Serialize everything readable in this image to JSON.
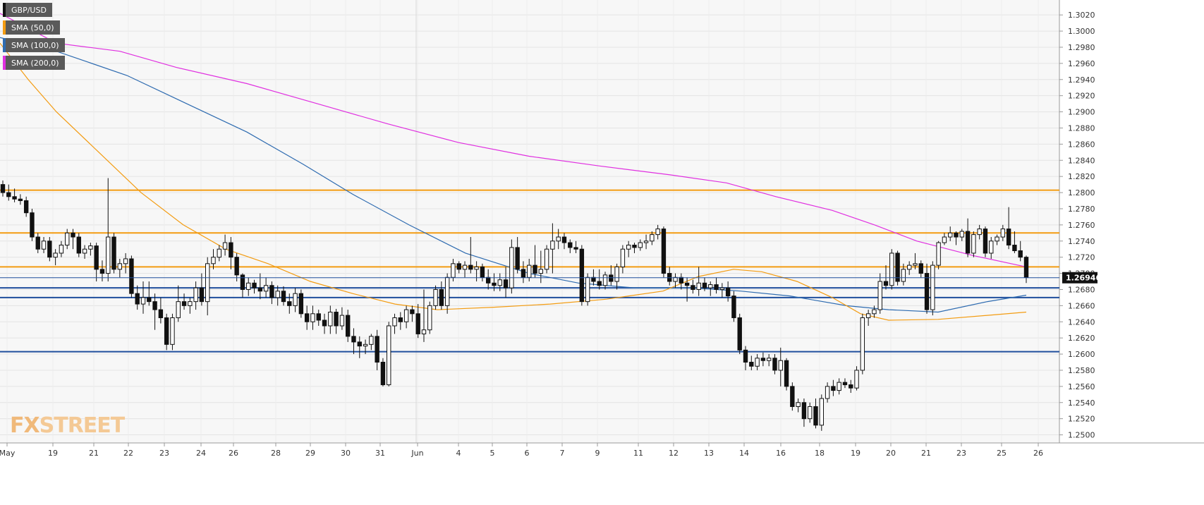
{
  "chart_data": {
    "type": "candlestick",
    "symbol": "GBP/USD",
    "last_price": "1.26946",
    "ylim": [
      1.249,
      1.3035
    ],
    "y_ticks": [
      "1.3020",
      "1.3000",
      "1.2980",
      "1.2960",
      "1.2940",
      "1.2920",
      "1.2900",
      "1.2880",
      "1.2860",
      "1.2840",
      "1.2820",
      "1.2800",
      "1.2780",
      "1.2760",
      "1.2740",
      "1.2720",
      "1.2700",
      "1.2680",
      "1.2660",
      "1.2640",
      "1.2620",
      "1.2600",
      "1.2580",
      "1.2560",
      "1.2540",
      "1.2520",
      "1.2500"
    ],
    "x_labels": [
      "May",
      "19",
      "21",
      "22",
      "23",
      "24",
      "26",
      "28",
      "29",
      "30",
      "31",
      "Jun",
      "4",
      "5",
      "6",
      "7",
      "9",
      "11",
      "12",
      "13",
      "14",
      "16",
      "18",
      "19",
      "20",
      "21",
      "23",
      "25",
      "26"
    ],
    "legend": [
      {
        "name": "GBP/USD",
        "color": "#111111"
      },
      {
        "name": "SMA (50,0)",
        "color": "#f39c12"
      },
      {
        "name": "SMA (100,0)",
        "color": "#2e6bb0"
      },
      {
        "name": "SMA (200,0)",
        "color": "#e030e0"
      }
    ],
    "horizontal_levels": [
      {
        "value": 1.2803,
        "color": "#f39c12"
      },
      {
        "value": 1.275,
        "color": "#f39c12"
      },
      {
        "value": 1.2708,
        "color": "#f39c12"
      },
      {
        "value": 1.2682,
        "color": "#1f4e9c"
      },
      {
        "value": 1.267,
        "color": "#1f4e9c"
      },
      {
        "value": 1.2603,
        "color": "#1f4e9c"
      }
    ],
    "candles": [
      [
        1.281,
        1.2815,
        1.2795,
        1.28
      ],
      [
        1.28,
        1.281,
        1.279,
        1.2795
      ],
      [
        1.2795,
        1.2805,
        1.2788,
        1.2792
      ],
      [
        1.2792,
        1.2798,
        1.2785,
        1.279
      ],
      [
        1.279,
        1.2795,
        1.277,
        1.2775
      ],
      [
        1.2775,
        1.278,
        1.274,
        1.2745
      ],
      [
        1.2745,
        1.275,
        1.2725,
        1.273
      ],
      [
        1.273,
        1.2745,
        1.2725,
        1.274
      ],
      [
        1.274,
        1.2745,
        1.2715,
        1.272
      ],
      [
        1.272,
        1.273,
        1.271,
        1.2725
      ],
      [
        1.2725,
        1.274,
        1.272,
        1.2735
      ],
      [
        1.2735,
        1.2755,
        1.273,
        1.275
      ],
      [
        1.275,
        1.2755,
        1.273,
        1.2745
      ],
      [
        1.2745,
        1.275,
        1.272,
        1.2725
      ],
      [
        1.2725,
        1.2735,
        1.2718,
        1.273
      ],
      [
        1.273,
        1.2738,
        1.2722,
        1.2734
      ],
      [
        1.2734,
        1.2738,
        1.269,
        1.2705
      ],
      [
        1.2705,
        1.2716,
        1.269,
        1.27
      ],
      [
        1.27,
        1.2818,
        1.269,
        1.2745
      ],
      [
        1.2745,
        1.275,
        1.27,
        1.2705
      ],
      [
        1.2705,
        1.2718,
        1.2695,
        1.2712
      ],
      [
        1.2712,
        1.2725,
        1.27,
        1.2718
      ],
      [
        1.2718,
        1.2722,
        1.267,
        1.2675
      ],
      [
        1.2675,
        1.2685,
        1.2655,
        1.2662
      ],
      [
        1.2662,
        1.269,
        1.265,
        1.267
      ],
      [
        1.267,
        1.269,
        1.266,
        1.2665
      ],
      [
        1.2665,
        1.2675,
        1.263,
        1.2655
      ],
      [
        1.2655,
        1.267,
        1.2638,
        1.2645
      ],
      [
        1.2645,
        1.265,
        1.2605,
        1.2612
      ],
      [
        1.2612,
        1.265,
        1.2605,
        1.2645
      ],
      [
        1.2645,
        1.2685,
        1.264,
        1.2665
      ],
      [
        1.2665,
        1.2675,
        1.2655,
        1.266
      ],
      [
        1.266,
        1.267,
        1.265,
        1.2665
      ],
      [
        1.2665,
        1.269,
        1.2655,
        1.2682
      ],
      [
        1.2682,
        1.27,
        1.266,
        1.2665
      ],
      [
        1.2665,
        1.272,
        1.2648,
        1.2712
      ],
      [
        1.2712,
        1.273,
        1.2705,
        1.272
      ],
      [
        1.272,
        1.2735,
        1.2715,
        1.273
      ],
      [
        1.273,
        1.2748,
        1.2722,
        1.2738
      ],
      [
        1.2738,
        1.2745,
        1.2705,
        1.272
      ],
      [
        1.272,
        1.2725,
        1.269,
        1.2698
      ],
      [
        1.2698,
        1.27,
        1.267,
        1.268
      ],
      [
        1.268,
        1.2695,
        1.2672,
        1.2688
      ],
      [
        1.2688,
        1.2692,
        1.2675,
        1.2682
      ],
      [
        1.2682,
        1.27,
        1.2668,
        1.2678
      ],
      [
        1.2678,
        1.2695,
        1.267,
        1.2685
      ],
      [
        1.2685,
        1.269,
        1.2662,
        1.267
      ],
      [
        1.267,
        1.2685,
        1.266,
        1.2678
      ],
      [
        1.2678,
        1.2684,
        1.266,
        1.2665
      ],
      [
        1.2665,
        1.2675,
        1.265,
        1.266
      ],
      [
        1.266,
        1.2682,
        1.2652,
        1.2675
      ],
      [
        1.2675,
        1.268,
        1.2645,
        1.265
      ],
      [
        1.265,
        1.266,
        1.263,
        1.264
      ],
      [
        1.264,
        1.266,
        1.263,
        1.265
      ],
      [
        1.265,
        1.2655,
        1.2635,
        1.2642
      ],
      [
        1.2642,
        1.265,
        1.2625,
        1.2635
      ],
      [
        1.2635,
        1.266,
        1.2625,
        1.2652
      ],
      [
        1.2652,
        1.2656,
        1.2625,
        1.2635
      ],
      [
        1.2635,
        1.2658,
        1.263,
        1.2648
      ],
      [
        1.2648,
        1.2655,
        1.2615,
        1.2622
      ],
      [
        1.2622,
        1.2632,
        1.26,
        1.2615
      ],
      [
        1.2615,
        1.2622,
        1.2595,
        1.261
      ],
      [
        1.261,
        1.2618,
        1.26,
        1.2612
      ],
      [
        1.2612,
        1.2625,
        1.2605,
        1.2622
      ],
      [
        1.2622,
        1.263,
        1.258,
        1.259
      ],
      [
        1.259,
        1.2595,
        1.256,
        1.2562
      ],
      [
        1.2562,
        1.264,
        1.256,
        1.2635
      ],
      [
        1.2635,
        1.265,
        1.2625,
        1.2645
      ],
      [
        1.2645,
        1.2652,
        1.263,
        1.264
      ],
      [
        1.264,
        1.266,
        1.2632,
        1.2655
      ],
      [
        1.2655,
        1.266,
        1.264,
        1.265
      ],
      [
        1.265,
        1.2662,
        1.262,
        1.2625
      ],
      [
        1.2625,
        1.268,
        1.2615,
        1.263
      ],
      [
        1.263,
        1.2665,
        1.2625,
        1.266
      ],
      [
        1.266,
        1.2685,
        1.2655,
        1.268
      ],
      [
        1.268,
        1.269,
        1.2655,
        1.266
      ],
      [
        1.266,
        1.27,
        1.265,
        1.2695
      ],
      [
        1.2695,
        1.2718,
        1.269,
        1.2712
      ],
      [
        1.2712,
        1.2715,
        1.27,
        1.2705
      ],
      [
        1.2705,
        1.2715,
        1.2695,
        1.271
      ],
      [
        1.271,
        1.2745,
        1.27,
        1.2705
      ],
      [
        1.2705,
        1.2715,
        1.269,
        1.2708
      ],
      [
        1.2708,
        1.2712,
        1.269,
        1.2695
      ],
      [
        1.2695,
        1.2705,
        1.268,
        1.2688
      ],
      [
        1.2688,
        1.27,
        1.2678,
        1.2685
      ],
      [
        1.2685,
        1.27,
        1.2678,
        1.2692
      ],
      [
        1.2692,
        1.2708,
        1.267,
        1.2682
      ],
      [
        1.2682,
        1.2742,
        1.2675,
        1.2732
      ],
      [
        1.2732,
        1.2745,
        1.27,
        1.2705
      ],
      [
        1.2705,
        1.2715,
        1.2688,
        1.2695
      ],
      [
        1.2695,
        1.2718,
        1.269,
        1.271
      ],
      [
        1.271,
        1.2735,
        1.2695,
        1.27
      ],
      [
        1.27,
        1.2728,
        1.2688,
        1.2705
      ],
      [
        1.2705,
        1.2735,
        1.27,
        1.273
      ],
      [
        1.273,
        1.2762,
        1.27,
        1.274
      ],
      [
        1.274,
        1.2755,
        1.273,
        1.2745
      ],
      [
        1.2745,
        1.275,
        1.273,
        1.2738
      ],
      [
        1.2738,
        1.2742,
        1.2725,
        1.2732
      ],
      [
        1.2732,
        1.274,
        1.2725,
        1.273
      ],
      [
        1.273,
        1.2735,
        1.266,
        1.2665
      ],
      [
        1.2665,
        1.27,
        1.266,
        1.2695
      ],
      [
        1.2695,
        1.2705,
        1.2685,
        1.269
      ],
      [
        1.269,
        1.2705,
        1.268,
        1.2685
      ],
      [
        1.2685,
        1.2702,
        1.268,
        1.2698
      ],
      [
        1.2698,
        1.271,
        1.2685,
        1.269
      ],
      [
        1.269,
        1.2712,
        1.268,
        1.2708
      ],
      [
        1.2708,
        1.2735,
        1.27,
        1.273
      ],
      [
        1.273,
        1.274,
        1.272,
        1.2735
      ],
      [
        1.2735,
        1.2738,
        1.2725,
        1.2732
      ],
      [
        1.2732,
        1.2742,
        1.2728,
        1.2738
      ],
      [
        1.2738,
        1.2748,
        1.273,
        1.274
      ],
      [
        1.274,
        1.2752,
        1.2735,
        1.2748
      ],
      [
        1.2748,
        1.276,
        1.2742,
        1.2755
      ],
      [
        1.2755,
        1.2758,
        1.2695,
        1.27
      ],
      [
        1.27,
        1.2708,
        1.2685,
        1.269
      ],
      [
        1.269,
        1.27,
        1.2682,
        1.2695
      ],
      [
        1.2695,
        1.27,
        1.268,
        1.2688
      ],
      [
        1.2688,
        1.2695,
        1.2665,
        1.2685
      ],
      [
        1.2685,
        1.2692,
        1.2675,
        1.268
      ],
      [
        1.268,
        1.2708,
        1.2672,
        1.2688
      ],
      [
        1.2688,
        1.2695,
        1.2678,
        1.2682
      ],
      [
        1.2682,
        1.269,
        1.2672,
        1.2686
      ],
      [
        1.2686,
        1.2695,
        1.2675,
        1.268
      ],
      [
        1.268,
        1.2688,
        1.267,
        1.2682
      ],
      [
        1.2682,
        1.269,
        1.2665,
        1.2672
      ],
      [
        1.2672,
        1.2678,
        1.264,
        1.2645
      ],
      [
        1.2645,
        1.265,
        1.26,
        1.2605
      ],
      [
        1.2605,
        1.261,
        1.258,
        1.259
      ],
      [
        1.259,
        1.2598,
        1.258,
        1.2585
      ],
      [
        1.2585,
        1.26,
        1.258,
        1.2595
      ],
      [
        1.2595,
        1.2602,
        1.2585,
        1.2592
      ],
      [
        1.2592,
        1.26,
        1.2585,
        1.2595
      ],
      [
        1.2595,
        1.26,
        1.2575,
        1.258
      ],
      [
        1.258,
        1.2608,
        1.256,
        1.2592
      ],
      [
        1.2592,
        1.2595,
        1.2555,
        1.256
      ],
      [
        1.256,
        1.2565,
        1.253,
        1.2535
      ],
      [
        1.2535,
        1.2545,
        1.2528,
        1.254
      ],
      [
        1.254,
        1.2545,
        1.251,
        1.252
      ],
      [
        1.252,
        1.254,
        1.2515,
        1.2535
      ],
      [
        1.2535,
        1.2545,
        1.2508,
        1.2512
      ],
      [
        1.2512,
        1.255,
        1.2505,
        1.2545
      ],
      [
        1.2545,
        1.2565,
        1.254,
        1.256
      ],
      [
        1.256,
        1.2568,
        1.2548,
        1.2555
      ],
      [
        1.2555,
        1.257,
        1.255,
        1.2565
      ],
      [
        1.2565,
        1.257,
        1.2558,
        1.2562
      ],
      [
        1.2562,
        1.2568,
        1.2552,
        1.2558
      ],
      [
        1.2558,
        1.2585,
        1.2555,
        1.258
      ],
      [
        1.258,
        1.265,
        1.2575,
        1.2645
      ],
      [
        1.2645,
        1.2655,
        1.2635,
        1.265
      ],
      [
        1.265,
        1.266,
        1.2645,
        1.2655
      ],
      [
        1.2655,
        1.27,
        1.265,
        1.269
      ],
      [
        1.269,
        1.271,
        1.268,
        1.2685
      ],
      [
        1.2685,
        1.273,
        1.268,
        1.2725
      ],
      [
        1.2725,
        1.2728,
        1.2685,
        1.269
      ],
      [
        1.269,
        1.2712,
        1.2685,
        1.2705
      ],
      [
        1.2705,
        1.2715,
        1.2698,
        1.271
      ],
      [
        1.271,
        1.2725,
        1.2705,
        1.2712
      ],
      [
        1.2712,
        1.2716,
        1.2695,
        1.27
      ],
      [
        1.27,
        1.2712,
        1.265,
        1.2655
      ],
      [
        1.2655,
        1.2715,
        1.2648,
        1.271
      ],
      [
        1.271,
        1.274,
        1.2705,
        1.2738
      ],
      [
        1.2738,
        1.275,
        1.2735,
        1.2745
      ],
      [
        1.2745,
        1.2758,
        1.274,
        1.275
      ],
      [
        1.275,
        1.2752,
        1.2735,
        1.2745
      ],
      [
        1.2745,
        1.2755,
        1.274,
        1.2752
      ],
      [
        1.2752,
        1.2768,
        1.272,
        1.2725
      ],
      [
        1.2725,
        1.2752,
        1.272,
        1.2748
      ],
      [
        1.2748,
        1.276,
        1.2742,
        1.2755
      ],
      [
        1.2755,
        1.2758,
        1.272,
        1.2725
      ],
      [
        1.2725,
        1.2745,
        1.2718,
        1.274
      ],
      [
        1.274,
        1.2748,
        1.2735,
        1.2745
      ],
      [
        1.2745,
        1.276,
        1.274,
        1.2755
      ],
      [
        1.2755,
        1.2782,
        1.273,
        1.2735
      ],
      [
        1.2735,
        1.2752,
        1.2725,
        1.2728
      ],
      [
        1.2728,
        1.274,
        1.2715,
        1.272
      ],
      [
        1.272,
        1.2722,
        1.2688,
        1.2695
      ]
    ],
    "sma200": [
      [
        0,
        1.3022
      ],
      [
        80,
        1.2985
      ],
      [
        170,
        1.2975
      ],
      [
        250,
        1.2955
      ],
      [
        350,
        1.2935
      ],
      [
        450,
        1.291
      ],
      [
        550,
        1.2885
      ],
      [
        650,
        1.2862
      ],
      [
        750,
        1.2845
      ],
      [
        850,
        1.2833
      ],
      [
        950,
        1.2822
      ],
      [
        1030,
        1.2812
      ],
      [
        1100,
        1.2795
      ],
      [
        1180,
        1.2778
      ],
      [
        1240,
        1.276
      ],
      [
        1300,
        1.274
      ],
      [
        1380,
        1.2722
      ],
      [
        1455,
        1.2708
      ]
    ],
    "sma100": [
      [
        0,
        1.2992
      ],
      [
        80,
        1.2975
      ],
      [
        180,
        1.2945
      ],
      [
        260,
        1.2912
      ],
      [
        350,
        1.2875
      ],
      [
        430,
        1.2835
      ],
      [
        500,
        1.2798
      ],
      [
        580,
        1.276
      ],
      [
        660,
        1.2725
      ],
      [
        750,
        1.27
      ],
      [
        820,
        1.2688
      ],
      [
        900,
        1.2682
      ],
      [
        980,
        1.2682
      ],
      [
        1050,
        1.2678
      ],
      [
        1120,
        1.2672
      ],
      [
        1200,
        1.266
      ],
      [
        1260,
        1.2655
      ],
      [
        1330,
        1.2652
      ],
      [
        1400,
        1.2665
      ],
      [
        1455,
        1.2673
      ]
    ],
    "sma50": [
      [
        0,
        1.2985
      ],
      [
        40,
        1.294
      ],
      [
        80,
        1.29
      ],
      [
        140,
        1.285
      ],
      [
        200,
        1.28
      ],
      [
        260,
        1.276
      ],
      [
        320,
        1.273
      ],
      [
        380,
        1.2712
      ],
      [
        440,
        1.269
      ],
      [
        500,
        1.2675
      ],
      [
        560,
        1.2662
      ],
      [
        620,
        1.2655
      ],
      [
        700,
        1.2658
      ],
      [
        780,
        1.2662
      ],
      [
        860,
        1.2668
      ],
      [
        940,
        1.2678
      ],
      [
        990,
        1.2696
      ],
      [
        1040,
        1.2705
      ],
      [
        1080,
        1.2702
      ],
      [
        1130,
        1.269
      ],
      [
        1180,
        1.267
      ],
      [
        1220,
        1.265
      ],
      [
        1260,
        1.2642
      ],
      [
        1330,
        1.2643
      ],
      [
        1400,
        1.2648
      ],
      [
        1455,
        1.2652
      ]
    ]
  },
  "branding": {
    "fx": "FX",
    "street": "STREET"
  }
}
